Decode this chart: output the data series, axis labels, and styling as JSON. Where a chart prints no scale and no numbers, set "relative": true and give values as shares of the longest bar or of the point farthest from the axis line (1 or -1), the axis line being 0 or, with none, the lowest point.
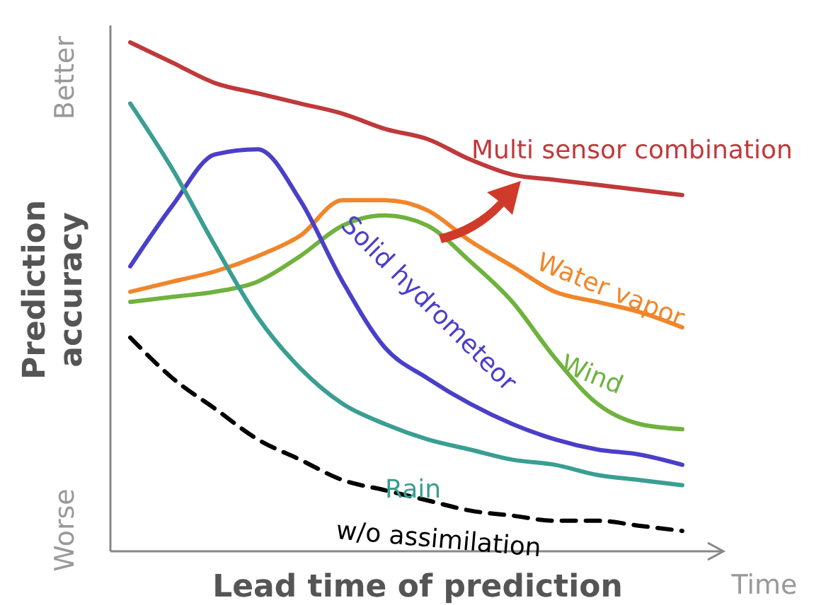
{
  "chart_data": {
    "type": "line",
    "relative": true,
    "xlabel": "Lead time of prediction",
    "ylabel": "Prediction accuracy",
    "categories": [
      null,
      null,
      null,
      null,
      null,
      null,
      null,
      null,
      null,
      null,
      null,
      null,
      null,
      null
    ],
    "annotations": [
      "Better",
      "Worse",
      "Time"
    ],
    "series": [
      {
        "name": "Multi sensor combination",
        "color": "#c0393b",
        "values": [
          1.0,
          0.96,
          0.92,
          0.9,
          0.88,
          0.86,
          0.83,
          0.81,
          0.77,
          0.74,
          0.73,
          0.72,
          0.71,
          0.7
        ]
      },
      {
        "name": "Water vapor",
        "color": "#f0862a",
        "values": [
          0.51,
          0.53,
          0.55,
          0.58,
          0.62,
          0.69,
          0.69,
          0.67,
          0.61,
          0.56,
          0.51,
          0.49,
          0.47,
          0.44
        ]
      },
      {
        "name": "Wind",
        "color": "#6fb23e",
        "values": [
          0.49,
          0.5,
          0.51,
          0.53,
          0.58,
          0.64,
          0.66,
          0.64,
          0.57,
          0.49,
          0.38,
          0.29,
          0.25,
          0.24
        ]
      },
      {
        "name": "Solid hydrometeor",
        "color": "#4a3fc9",
        "values": [
          0.56,
          0.68,
          0.78,
          0.79,
          0.69,
          0.53,
          0.4,
          0.34,
          0.29,
          0.25,
          0.22,
          0.2,
          0.19,
          0.17
        ]
      },
      {
        "name": "Rain",
        "color": "#3a9e92",
        "values": [
          0.88,
          0.75,
          0.6,
          0.46,
          0.36,
          0.29,
          0.25,
          0.22,
          0.2,
          0.18,
          0.17,
          0.15,
          0.14,
          0.13
        ]
      },
      {
        "name": "w/o assimilation",
        "color": "#000000",
        "line_style": "dashed",
        "values": [
          0.42,
          0.34,
          0.28,
          0.22,
          0.18,
          0.14,
          0.12,
          0.1,
          0.08,
          0.07,
          0.06,
          0.06,
          0.05,
          0.04
        ]
      }
    ]
  }
}
